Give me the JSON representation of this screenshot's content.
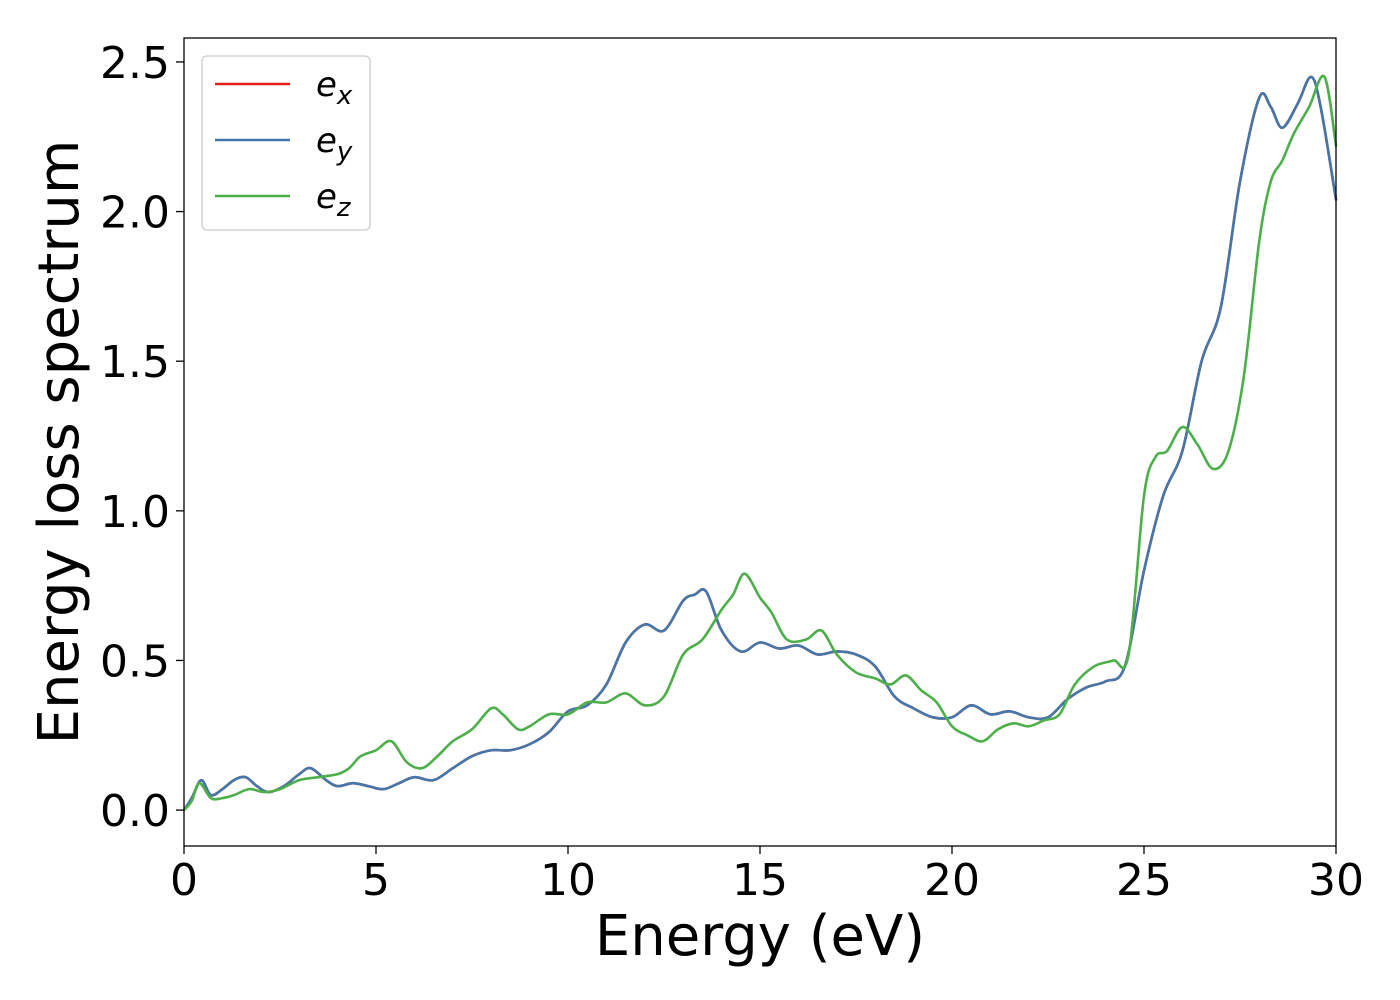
{
  "chart_data": {
    "type": "line",
    "title": "",
    "xlabel": "Energy (eV)",
    "ylabel": "Energy loss spectrum",
    "xlim": [
      0,
      30
    ],
    "ylim": [
      -0.12,
      2.58
    ],
    "xticks": [
      0,
      5,
      10,
      15,
      20,
      25,
      30
    ],
    "xtick_labels": [
      "0",
      "5",
      "10",
      "15",
      "20",
      "25",
      "30"
    ],
    "yticks": [
      0.0,
      0.5,
      1.0,
      1.5,
      2.0,
      2.5
    ],
    "ytick_labels": [
      "0.0",
      "0.5",
      "1.0",
      "1.5",
      "2.0",
      "2.5"
    ],
    "grid": false,
    "legend_position": "top-left",
    "series": [
      {
        "name": "e",
        "subscript": "x",
        "color": "#e41a1c",
        "x": [
          0,
          0.2,
          0.45,
          0.7,
          1.0,
          1.3,
          1.6,
          1.9,
          2.2,
          2.6,
          3.0,
          3.3,
          3.7,
          4.0,
          4.4,
          4.8,
          5.2,
          5.6,
          6.0,
          6.5,
          7.0,
          7.5,
          8.0,
          8.5,
          9.0,
          9.5,
          10.0,
          10.5,
          11.0,
          11.5,
          12.0,
          12.5,
          13.0,
          13.3,
          13.6,
          14.0,
          14.5,
          15.0,
          15.5,
          16.0,
          16.5,
          17.0,
          17.5,
          18.0,
          18.5,
          19.0,
          19.5,
          20.0,
          20.5,
          21.0,
          21.5,
          22.0,
          22.5,
          23.0,
          23.5,
          24.0,
          24.5,
          25.0,
          25.5,
          26.0,
          26.5,
          27.0,
          27.5,
          28.0,
          28.3,
          28.6,
          29.0,
          29.35,
          29.6,
          30.0
        ],
        "values": [
          0.0,
          0.04,
          0.1,
          0.05,
          0.07,
          0.1,
          0.11,
          0.08,
          0.06,
          0.08,
          0.12,
          0.14,
          0.1,
          0.08,
          0.09,
          0.08,
          0.07,
          0.09,
          0.11,
          0.1,
          0.14,
          0.18,
          0.2,
          0.2,
          0.22,
          0.26,
          0.33,
          0.35,
          0.42,
          0.56,
          0.62,
          0.6,
          0.7,
          0.72,
          0.73,
          0.6,
          0.53,
          0.56,
          0.54,
          0.55,
          0.52,
          0.53,
          0.52,
          0.48,
          0.38,
          0.34,
          0.31,
          0.31,
          0.35,
          0.32,
          0.33,
          0.31,
          0.31,
          0.37,
          0.41,
          0.43,
          0.48,
          0.8,
          1.05,
          1.2,
          1.5,
          1.68,
          2.1,
          2.38,
          2.35,
          2.28,
          2.36,
          2.45,
          2.35,
          2.04
        ]
      },
      {
        "name": "e",
        "subscript": "y",
        "color": "#4477aa",
        "x": [
          0,
          0.2,
          0.45,
          0.7,
          1.0,
          1.3,
          1.6,
          1.9,
          2.2,
          2.6,
          3.0,
          3.3,
          3.7,
          4.0,
          4.4,
          4.8,
          5.2,
          5.6,
          6.0,
          6.5,
          7.0,
          7.5,
          8.0,
          8.5,
          9.0,
          9.5,
          10.0,
          10.5,
          11.0,
          11.5,
          12.0,
          12.5,
          13.0,
          13.3,
          13.6,
          14.0,
          14.5,
          15.0,
          15.5,
          16.0,
          16.5,
          17.0,
          17.5,
          18.0,
          18.5,
          19.0,
          19.5,
          20.0,
          20.5,
          21.0,
          21.5,
          22.0,
          22.5,
          23.0,
          23.5,
          24.0,
          24.5,
          25.0,
          25.5,
          26.0,
          26.5,
          27.0,
          27.5,
          28.0,
          28.3,
          28.6,
          29.0,
          29.35,
          29.6,
          30.0
        ],
        "values": [
          0.0,
          0.04,
          0.1,
          0.05,
          0.07,
          0.1,
          0.11,
          0.08,
          0.06,
          0.08,
          0.12,
          0.14,
          0.1,
          0.08,
          0.09,
          0.08,
          0.07,
          0.09,
          0.11,
          0.1,
          0.14,
          0.18,
          0.2,
          0.2,
          0.22,
          0.26,
          0.33,
          0.35,
          0.42,
          0.56,
          0.62,
          0.6,
          0.7,
          0.72,
          0.73,
          0.6,
          0.53,
          0.56,
          0.54,
          0.55,
          0.52,
          0.53,
          0.52,
          0.48,
          0.38,
          0.34,
          0.31,
          0.31,
          0.35,
          0.32,
          0.33,
          0.31,
          0.31,
          0.37,
          0.41,
          0.43,
          0.48,
          0.8,
          1.05,
          1.2,
          1.5,
          1.68,
          2.1,
          2.38,
          2.35,
          2.28,
          2.36,
          2.45,
          2.35,
          2.04
        ]
      },
      {
        "name": "e",
        "subscript": "z",
        "color": "#4daf4a",
        "x": [
          0,
          0.2,
          0.4,
          0.7,
          1.0,
          1.3,
          1.7,
          2.1,
          2.5,
          3.0,
          3.5,
          4.0,
          4.3,
          4.6,
          5.0,
          5.4,
          5.8,
          6.2,
          6.6,
          7.0,
          7.5,
          8.0,
          8.3,
          8.7,
          9.0,
          9.5,
          10.0,
          10.5,
          11.0,
          11.5,
          12.0,
          12.5,
          13.0,
          13.5,
          14.0,
          14.3,
          14.6,
          15.0,
          15.3,
          15.7,
          16.2,
          16.6,
          17.0,
          17.5,
          18.0,
          18.4,
          18.8,
          19.2,
          19.6,
          20.0,
          20.4,
          20.8,
          21.2,
          21.6,
          22.0,
          22.4,
          22.8,
          23.2,
          23.7,
          24.2,
          24.6,
          25.0,
          25.3,
          25.6,
          26.0,
          26.4,
          26.8,
          27.2,
          27.6,
          28.0,
          28.3,
          28.6,
          28.9,
          29.3,
          29.7,
          30.0
        ],
        "values": [
          0.0,
          0.03,
          0.09,
          0.04,
          0.04,
          0.05,
          0.07,
          0.06,
          0.07,
          0.1,
          0.11,
          0.12,
          0.14,
          0.18,
          0.2,
          0.23,
          0.16,
          0.14,
          0.18,
          0.23,
          0.27,
          0.34,
          0.32,
          0.27,
          0.28,
          0.32,
          0.32,
          0.36,
          0.36,
          0.39,
          0.35,
          0.38,
          0.52,
          0.57,
          0.67,
          0.72,
          0.79,
          0.71,
          0.66,
          0.57,
          0.57,
          0.6,
          0.52,
          0.46,
          0.44,
          0.42,
          0.45,
          0.4,
          0.36,
          0.28,
          0.25,
          0.23,
          0.27,
          0.29,
          0.28,
          0.3,
          0.32,
          0.42,
          0.48,
          0.5,
          0.52,
          1.05,
          1.18,
          1.2,
          1.28,
          1.22,
          1.14,
          1.2,
          1.45,
          1.9,
          2.1,
          2.17,
          2.26,
          2.35,
          2.45,
          2.22
        ]
      }
    ]
  }
}
